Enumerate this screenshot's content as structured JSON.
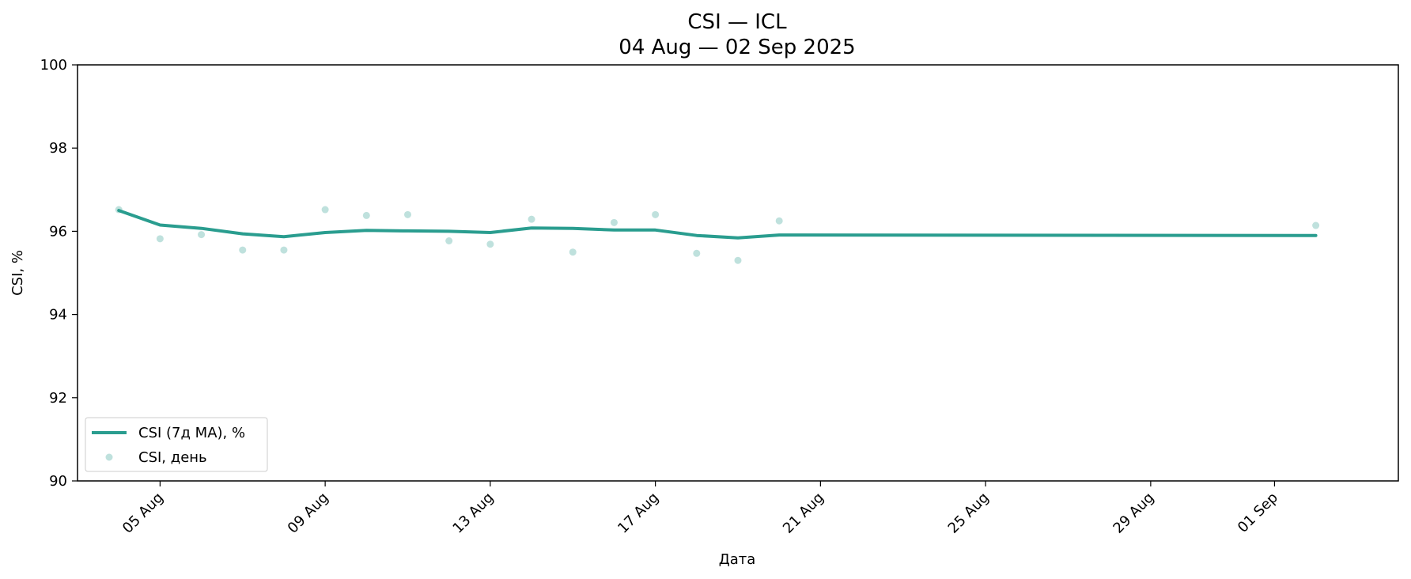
{
  "chart_data": {
    "type": "line",
    "title": "CSI — ICL",
    "subtitle": "04 Aug — 02 Sep 2025",
    "xlabel": "Дата",
    "ylabel": "CSI, %",
    "ylim": [
      90,
      100
    ],
    "xlim": [
      "2025-08-03",
      "2025-09-04"
    ],
    "yticks": [
      90,
      92,
      94,
      96,
      98,
      100
    ],
    "xticks": [
      {
        "date": "2025-08-05",
        "label": "05 Aug"
      },
      {
        "date": "2025-08-09",
        "label": "09 Aug"
      },
      {
        "date": "2025-08-13",
        "label": "13 Aug"
      },
      {
        "date": "2025-08-17",
        "label": "17 Aug"
      },
      {
        "date": "2025-08-21",
        "label": "21 Aug"
      },
      {
        "date": "2025-08-25",
        "label": "25 Aug"
      },
      {
        "date": "2025-08-29",
        "label": "29 Aug"
      },
      {
        "date": "2025-09-01",
        "label": "01 Sep"
      }
    ],
    "grid": false,
    "legend_position": "lower-left",
    "series": [
      {
        "name": "CSI (7д MA), %",
        "kind": "line",
        "color": "#2a9d8f",
        "points": [
          [
            "2025-08-04",
            96.5
          ],
          [
            "2025-08-05",
            96.15
          ],
          [
            "2025-08-06",
            96.07
          ],
          [
            "2025-08-07",
            95.94
          ],
          [
            "2025-08-08",
            95.87
          ],
          [
            "2025-08-09",
            95.97
          ],
          [
            "2025-08-10",
            96.02
          ],
          [
            "2025-08-11",
            96.01
          ],
          [
            "2025-08-12",
            96.0
          ],
          [
            "2025-08-13",
            95.97
          ],
          [
            "2025-08-14",
            96.08
          ],
          [
            "2025-08-15",
            96.07
          ],
          [
            "2025-08-16",
            96.03
          ],
          [
            "2025-08-17",
            96.03
          ],
          [
            "2025-08-18",
            95.9
          ],
          [
            "2025-08-19",
            95.84
          ],
          [
            "2025-08-20",
            95.91
          ],
          [
            "2025-09-02",
            95.9
          ]
        ]
      },
      {
        "name": "CSI, день",
        "kind": "scatter",
        "color": "#2a9d8f",
        "points": [
          [
            "2025-08-04",
            96.52
          ],
          [
            "2025-08-05",
            95.82
          ],
          [
            "2025-08-06",
            95.92
          ],
          [
            "2025-08-07",
            95.55
          ],
          [
            "2025-08-08",
            95.55
          ],
          [
            "2025-08-09",
            96.52
          ],
          [
            "2025-08-10",
            96.38
          ],
          [
            "2025-08-11",
            96.4
          ],
          [
            "2025-08-12",
            95.77
          ],
          [
            "2025-08-13",
            95.69
          ],
          [
            "2025-08-14",
            96.29
          ],
          [
            "2025-08-15",
            95.5
          ],
          [
            "2025-08-16",
            96.21
          ],
          [
            "2025-08-17",
            96.4
          ],
          [
            "2025-08-18",
            95.47
          ],
          [
            "2025-08-19",
            95.3
          ],
          [
            "2025-08-20",
            96.25
          ],
          [
            "2025-09-02",
            96.14
          ]
        ]
      }
    ]
  }
}
